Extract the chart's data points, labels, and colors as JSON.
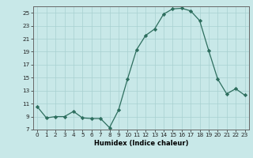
{
  "x": [
    0,
    1,
    2,
    3,
    4,
    5,
    6,
    7,
    8,
    9,
    10,
    11,
    12,
    13,
    14,
    15,
    16,
    17,
    18,
    19,
    20,
    21,
    22,
    23
  ],
  "y": [
    10.5,
    8.8,
    9.0,
    9.0,
    9.8,
    8.8,
    8.7,
    8.7,
    7.3,
    10.0,
    14.8,
    19.3,
    21.5,
    22.5,
    24.8,
    25.6,
    25.7,
    25.3,
    23.8,
    19.2,
    14.8,
    12.5,
    13.3,
    12.3
  ],
  "xlabel": "Humidex (Indice chaleur)",
  "xlim": [
    -0.5,
    23.5
  ],
  "ylim": [
    7,
    26
  ],
  "yticks": [
    7,
    9,
    11,
    13,
    15,
    17,
    19,
    21,
    23,
    25
  ],
  "xticks": [
    0,
    1,
    2,
    3,
    4,
    5,
    6,
    7,
    8,
    9,
    10,
    11,
    12,
    13,
    14,
    15,
    16,
    17,
    18,
    19,
    20,
    21,
    22,
    23
  ],
  "line_color": "#2d6e5e",
  "marker_color": "#2d6e5e",
  "bg_color": "#c8e8e8",
  "grid_color": "#a8d0d0",
  "xlabel_fontsize": 6.0,
  "tick_fontsize": 5.2
}
